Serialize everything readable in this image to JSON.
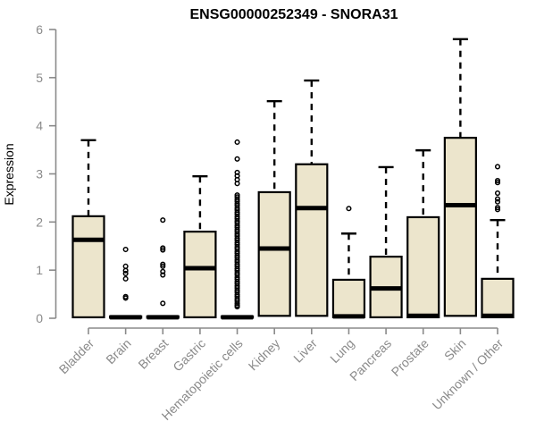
{
  "colors": {
    "box_fill": "#ece5cc",
    "box_border": "#000000",
    "median": "#000000",
    "whisker": "#000000",
    "outlier": "#000000",
    "axis": "#8a8a8a",
    "tick_label": "#8a8a8a",
    "title": "#000000",
    "background": "#ffffff"
  },
  "chart_data": {
    "type": "boxplot",
    "title": "ENSG00000252349 - SNORA31",
    "xlabel": "",
    "ylabel": "Expression",
    "ylim": [
      0,
      6
    ],
    "yticks": [
      0,
      1,
      2,
      3,
      4,
      5,
      6
    ],
    "grid": false,
    "legend": "none",
    "categories": [
      "Bladder",
      "Brain",
      "Breast",
      "Gastric",
      "Hematopoietic cells",
      "Kidney",
      "Liver",
      "Lung",
      "Pancreas",
      "Prostate",
      "Skin",
      "Unknown / Other"
    ],
    "series": [
      {
        "category": "Bladder",
        "whisker_low": 0,
        "q1": 0.02,
        "median": 1.63,
        "q3": 2.12,
        "whisker_high": 3.7,
        "outliers": []
      },
      {
        "category": "Brain",
        "whisker_low": 0,
        "q1": 0.01,
        "median": 0.02,
        "q3": 0.04,
        "whisker_high": 0.04,
        "outliers": [
          1.43,
          1.08,
          0.99,
          0.93,
          0.82,
          0.45,
          0.42
        ]
      },
      {
        "category": "Breast",
        "whisker_low": 0,
        "q1": 0.01,
        "median": 0.02,
        "q3": 0.04,
        "whisker_high": 0.04,
        "outliers": [
          2.04,
          1.46,
          1.42,
          1.12,
          1.08,
          0.97,
          0.9,
          0.31
        ]
      },
      {
        "category": "Gastric",
        "whisker_low": 0,
        "q1": 0.02,
        "median": 1.04,
        "q3": 1.8,
        "whisker_high": 2.95,
        "outliers": []
      },
      {
        "category": "Hematopoietic cells",
        "whisker_low": 0,
        "q1": 0.01,
        "median": 0.02,
        "q3": 0.04,
        "whisker_high": 0.05,
        "outliers": [
          3.66,
          3.31,
          3.03,
          2.96,
          2.88,
          2.8,
          2.56,
          2.52,
          2.47,
          2.43,
          2.38,
          2.34,
          2.29,
          2.25,
          2.2,
          2.16,
          2.11,
          2.07,
          2.02,
          1.98,
          1.93,
          1.89,
          1.84,
          1.8,
          1.75,
          1.71,
          1.66,
          1.62,
          1.57,
          1.53,
          1.48,
          1.44,
          1.39,
          1.35,
          1.3,
          1.26,
          1.21,
          1.17,
          1.12,
          1.08,
          1.03,
          0.99,
          0.94,
          0.9,
          0.85,
          0.81,
          0.76,
          0.72,
          0.67,
          0.63,
          0.58,
          0.54,
          0.49,
          0.45,
          0.4,
          0.36,
          0.31,
          0.27,
          0.24
        ]
      },
      {
        "category": "Kidney",
        "whisker_low": 0.05,
        "q1": 0.05,
        "median": 1.45,
        "q3": 2.62,
        "whisker_high": 4.51,
        "outliers": []
      },
      {
        "category": "Liver",
        "whisker_low": 0.05,
        "q1": 0.05,
        "median": 2.29,
        "q3": 3.2,
        "whisker_high": 4.94,
        "outliers": []
      },
      {
        "category": "Lung",
        "whisker_low": 0,
        "q1": 0.02,
        "median": 0.04,
        "q3": 0.8,
        "whisker_high": 1.76,
        "outliers": [
          2.28
        ]
      },
      {
        "category": "Pancreas",
        "whisker_low": 0,
        "q1": 0.02,
        "median": 0.62,
        "q3": 1.28,
        "whisker_high": 3.14,
        "outliers": []
      },
      {
        "category": "Prostate",
        "whisker_low": 0,
        "q1": 0.02,
        "median": 0.05,
        "q3": 2.1,
        "whisker_high": 3.49,
        "outliers": []
      },
      {
        "category": "Skin",
        "whisker_low": 0.05,
        "q1": 0.05,
        "median": 2.35,
        "q3": 3.75,
        "whisker_high": 5.8,
        "outliers": []
      },
      {
        "category": "Unknown / Other",
        "whisker_low": 0,
        "q1": 0.02,
        "median": 0.05,
        "q3": 0.82,
        "whisker_high": 2.04,
        "outliers": [
          3.15,
          2.86,
          2.82,
          2.6,
          2.48,
          2.42,
          2.3,
          2.26
        ]
      }
    ]
  }
}
